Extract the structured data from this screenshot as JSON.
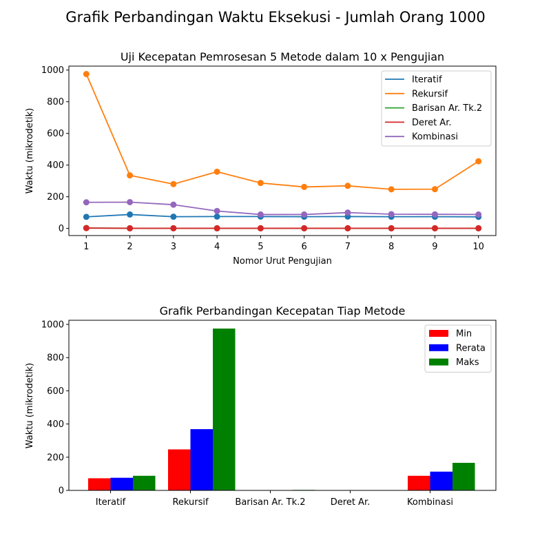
{
  "figure": {
    "suptitle": "Grafik Perbandingan Waktu Eksekusi - Jumlah Orang 1000"
  },
  "chart_data": [
    {
      "type": "line",
      "title": "Uji Kecepatan Pemrosesan 5 Metode dalam 10 x Pengujian",
      "xlabel": "Nomor Urut Pengujian",
      "ylabel": "Waktu (mikrodetik)",
      "x": [
        1,
        2,
        3,
        4,
        5,
        6,
        7,
        8,
        9,
        10
      ],
      "xticks": [
        1,
        2,
        3,
        4,
        5,
        6,
        7,
        8,
        9,
        10
      ],
      "xlim": [
        0.6,
        10.4
      ],
      "ylim": [
        -45,
        1025
      ],
      "yticks": [
        0,
        200,
        400,
        600,
        800,
        1000
      ],
      "grid": false,
      "legend_position": "top-right",
      "markers": "circle",
      "series": [
        {
          "name": "Iteratif",
          "color": "#1f77b4",
          "values": [
            73,
            88,
            74,
            75,
            75,
            74,
            75,
            74,
            74,
            73
          ]
        },
        {
          "name": "Rekursif",
          "color": "#ff7f0e",
          "values": [
            975,
            335,
            280,
            358,
            287,
            262,
            269,
            247,
            248,
            424
          ]
        },
        {
          "name": "Barisan Ar. Tk.2",
          "color": "#2ca02c",
          "values": [
            3,
            1,
            1,
            1,
            1,
            1,
            1,
            1,
            1,
            1
          ]
        },
        {
          "name": "Deret Ar.",
          "color": "#d62728",
          "values": [
            2,
            1,
            1,
            1,
            1,
            1,
            1,
            1,
            1,
            1
          ]
        },
        {
          "name": "Kombinasi",
          "color": "#9467bd",
          "values": [
            165,
            166,
            150,
            110,
            88,
            88,
            100,
            90,
            89,
            88
          ]
        }
      ]
    },
    {
      "type": "bar",
      "title": "Grafik Perbandingan Kecepatan Tiap Metode",
      "ylabel": "Waktu (mikrodetik)",
      "xlabel": "",
      "categories": [
        "Iteratif",
        "Rekursif",
        "Barisan Ar. Tk.2",
        "Deret Ar.",
        "Kombinasi"
      ],
      "ylim": [
        0,
        1025
      ],
      "yticks": [
        0,
        200,
        400,
        600,
        800,
        1000
      ],
      "grid": false,
      "legend_position": "top-right",
      "series": [
        {
          "name": "Min",
          "color": "#ff0000",
          "values": [
            73,
            247,
            1,
            1,
            88
          ]
        },
        {
          "name": "Rerata",
          "color": "#0000ff",
          "values": [
            76,
            369,
            1,
            1,
            113
          ]
        },
        {
          "name": "Maks",
          "color": "#008000",
          "values": [
            88,
            975,
            3,
            2,
            166
          ]
        }
      ]
    }
  ]
}
